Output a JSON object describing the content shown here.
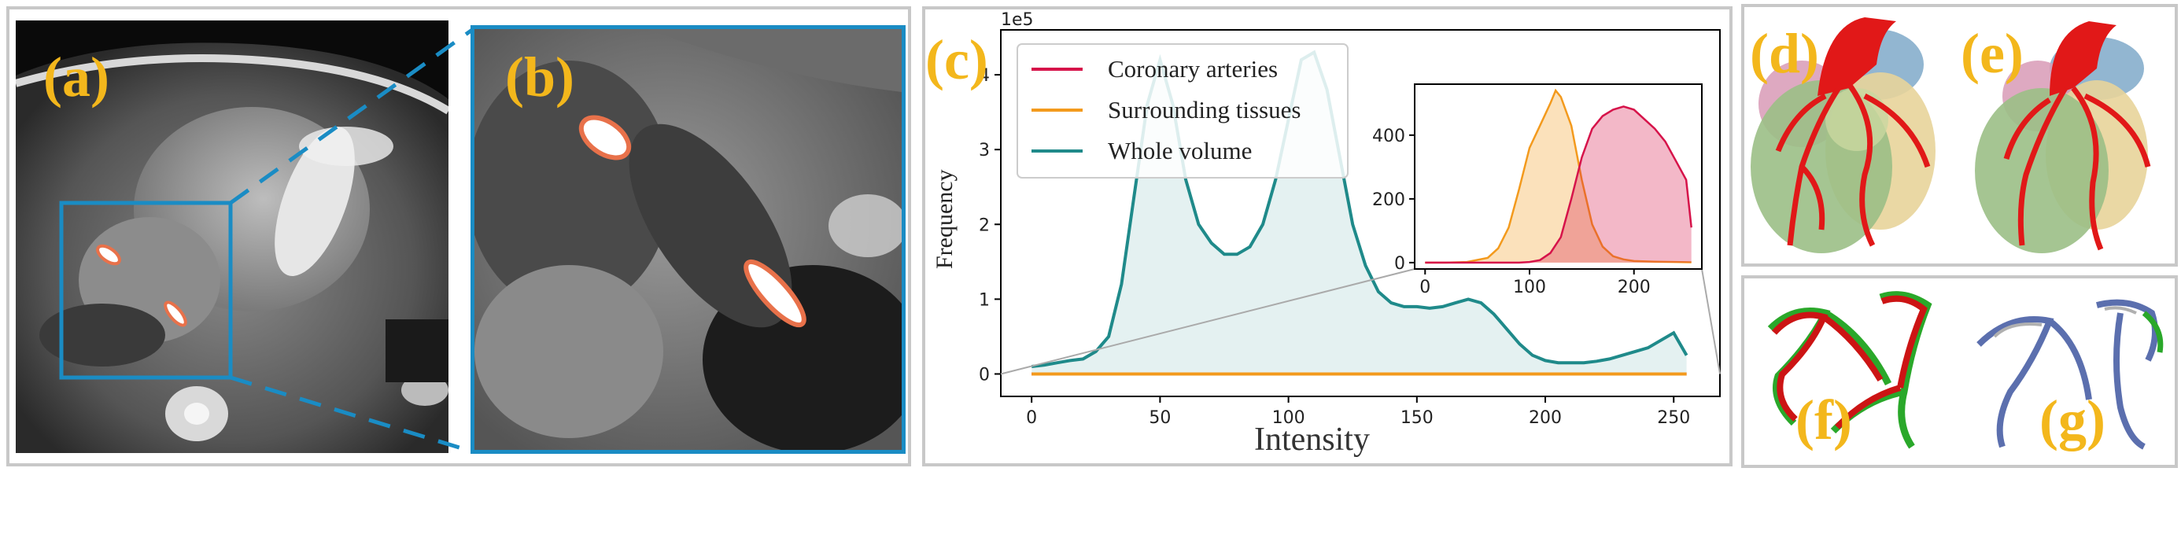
{
  "panels": {
    "a": "(a)",
    "b": "(b)",
    "c": "(c)",
    "d": "(d)",
    "e": "(e)",
    "f": "(f)",
    "g": "(g)"
  },
  "colors": {
    "label": "#f3b71c",
    "zoom_box": "#1a8cc4",
    "coronary": "#d6134a",
    "surrounding": "#f39a1d",
    "whole": "#1f8a8a",
    "annotation": "#e8714a"
  },
  "chart_data": [
    {
      "type": "line",
      "title": "",
      "exponent_label": "1e5",
      "xlabel": "Intensity",
      "ylabel": "Frequency",
      "xlim": [
        -12,
        268
      ],
      "ylim": [
        -0.3,
        4.6
      ],
      "xticks": [
        0,
        50,
        100,
        150,
        200,
        250
      ],
      "yticks": [
        0,
        1,
        2,
        3,
        4
      ],
      "grid": false,
      "legend_position": "upper-left",
      "series": [
        {
          "name": "Coronary arteries",
          "color": "#d6134a",
          "fill": false,
          "x": [
            0,
            255
          ],
          "y": [
            0,
            0
          ]
        },
        {
          "name": "Surrounding tissues",
          "color": "#f39a1d",
          "fill": false,
          "x": [
            0,
            255
          ],
          "y": [
            0,
            0
          ]
        },
        {
          "name": "Whole volume",
          "color": "#1f8a8a",
          "fill": true,
          "x": [
            0,
            5,
            10,
            15,
            20,
            25,
            30,
            35,
            40,
            45,
            50,
            55,
            60,
            65,
            70,
            75,
            80,
            85,
            90,
            95,
            100,
            105,
            110,
            115,
            120,
            125,
            130,
            135,
            140,
            145,
            150,
            155,
            160,
            165,
            170,
            175,
            180,
            185,
            190,
            195,
            200,
            205,
            210,
            215,
            220,
            225,
            230,
            235,
            240,
            245,
            250,
            255
          ],
          "y": [
            0.1,
            0.12,
            0.15,
            0.18,
            0.2,
            0.3,
            0.5,
            1.2,
            2.4,
            3.6,
            4.2,
            3.6,
            2.6,
            2.0,
            1.75,
            1.6,
            1.6,
            1.7,
            2.0,
            2.6,
            3.4,
            4.2,
            4.3,
            3.8,
            2.9,
            2.0,
            1.45,
            1.1,
            0.95,
            0.9,
            0.9,
            0.88,
            0.9,
            0.95,
            1.0,
            0.95,
            0.8,
            0.6,
            0.4,
            0.25,
            0.18,
            0.15,
            0.15,
            0.15,
            0.17,
            0.2,
            0.25,
            0.3,
            0.35,
            0.45,
            0.55,
            0.25
          ]
        }
      ]
    },
    {
      "type": "area",
      "title": "",
      "inset": true,
      "xlim": [
        -10,
        265
      ],
      "ylim": [
        -20,
        560
      ],
      "xticks": [
        0,
        100,
        200
      ],
      "yticks": [
        0,
        200,
        400
      ],
      "series": [
        {
          "name": "",
          "color": "#f39a1d",
          "fill": true,
          "x": [
            0,
            20,
            40,
            60,
            70,
            80,
            90,
            100,
            110,
            120,
            125,
            130,
            140,
            150,
            160,
            170,
            180,
            190,
            200,
            220,
            240,
            255
          ],
          "y": [
            0,
            0,
            2,
            15,
            45,
            110,
            230,
            360,
            430,
            500,
            540,
            520,
            430,
            260,
            120,
            50,
            20,
            10,
            5,
            3,
            2,
            1
          ]
        },
        {
          "name": "",
          "color": "#d6134a",
          "fill": true,
          "x": [
            0,
            60,
            90,
            100,
            110,
            120,
            130,
            140,
            150,
            160,
            170,
            180,
            190,
            200,
            210,
            220,
            230,
            240,
            250,
            255
          ],
          "y": [
            0,
            0,
            0,
            2,
            8,
            30,
            80,
            200,
            330,
            420,
            460,
            480,
            490,
            480,
            450,
            420,
            380,
            320,
            260,
            110
          ]
        }
      ]
    }
  ]
}
